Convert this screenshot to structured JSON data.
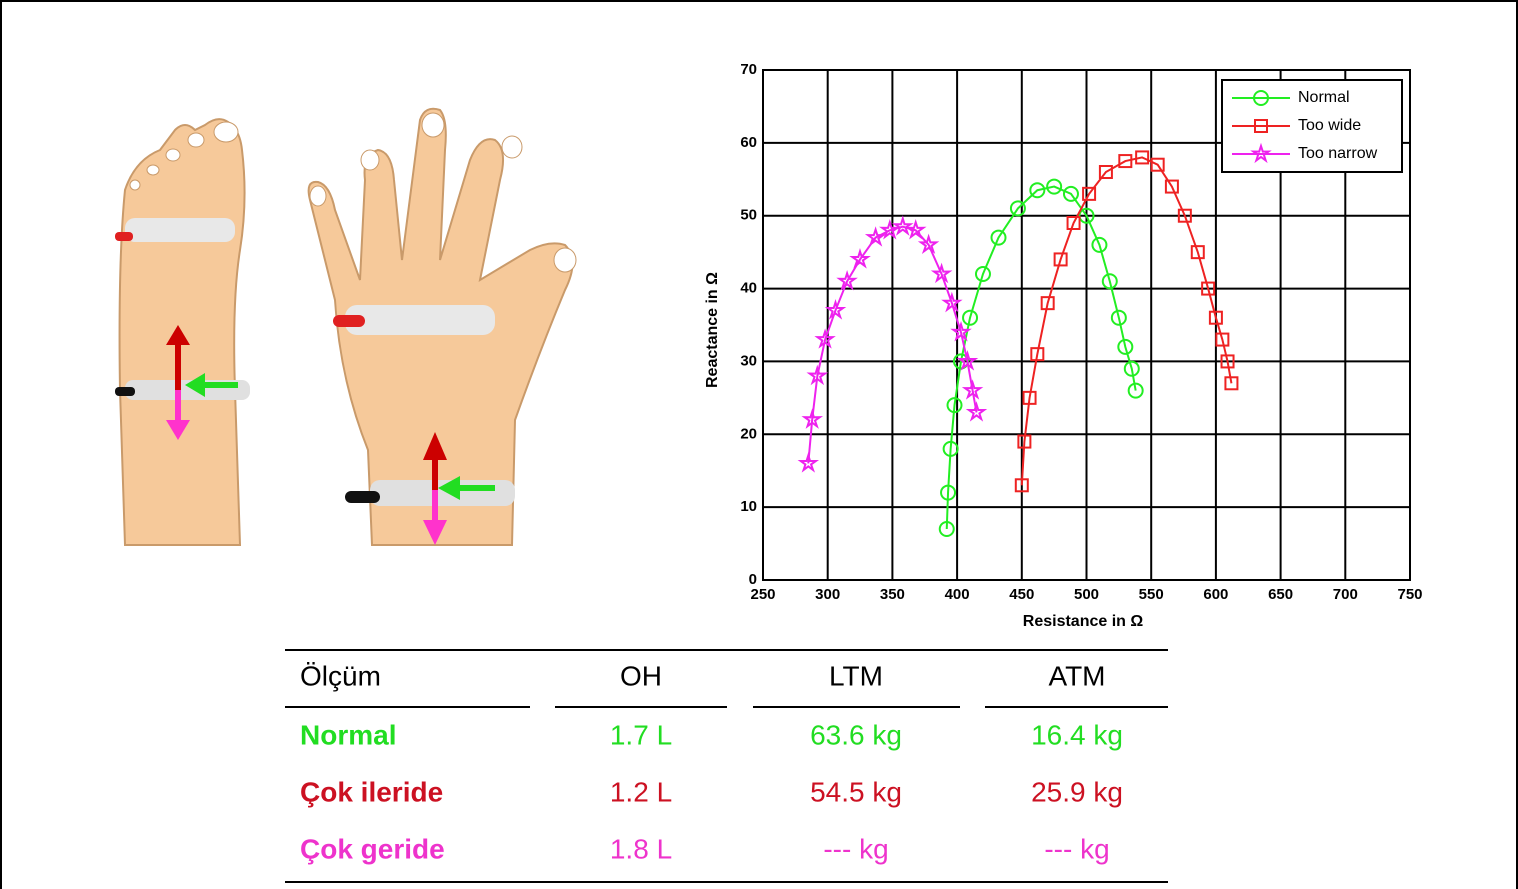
{
  "chart_data": {
    "type": "scatter",
    "x_label": "Resistance in Ω",
    "y_label": "Reactance in Ω",
    "xlim": [
      250,
      750
    ],
    "xticks": [
      250,
      300,
      350,
      400,
      450,
      500,
      550,
      600,
      650,
      700,
      750
    ],
    "ylim": [
      0,
      70
    ],
    "yticks": [
      0,
      10,
      20,
      30,
      40,
      50,
      60,
      70
    ],
    "grid": true,
    "legend": "northeast",
    "series": [
      {
        "name": "Normal",
        "color": "#22ee22",
        "marker": "circle",
        "x": [
          392,
          393,
          395,
          398,
          403,
          410,
          420,
          432,
          447,
          462,
          475,
          488,
          500,
          510,
          518,
          525,
          530,
          535,
          538
        ],
        "values": [
          7,
          12,
          18,
          24,
          30,
          36,
          42,
          47,
          51,
          53.5,
          54,
          53,
          50,
          46,
          41,
          36,
          32,
          29,
          26
        ]
      },
      {
        "name": "Too wide",
        "color": "#ee2222",
        "marker": "square",
        "x": [
          450,
          452,
          456,
          462,
          470,
          480,
          490,
          502,
          515,
          530,
          543,
          555,
          566,
          576,
          586,
          594,
          600,
          605,
          609,
          612
        ],
        "values": [
          13,
          19,
          25,
          31,
          38,
          44,
          49,
          53,
          56,
          57.5,
          58,
          57,
          54,
          50,
          45,
          40,
          36,
          33,
          30,
          27
        ]
      },
      {
        "name": "Too narrow",
        "color": "#ee22ee",
        "marker": "star",
        "x": [
          285,
          288,
          292,
          298,
          306,
          315,
          325,
          337,
          348,
          358,
          368,
          378,
          388,
          396,
          403,
          408,
          412,
          415
        ],
        "values": [
          16,
          22,
          28,
          33,
          37,
          41,
          44,
          47,
          48,
          48.5,
          48,
          46,
          42,
          38,
          34,
          30,
          26,
          23
        ]
      }
    ]
  },
  "table": {
    "header": [
      "Ölçüm",
      "OH",
      "LTM",
      "ATM"
    ],
    "rows": [
      [
        "Normal",
        "1.7 L",
        "63.6 kg",
        "16.4 kg"
      ],
      [
        "Çok ileride",
        "1.2 L",
        "54.5 kg",
        "25.9 kg"
      ],
      [
        "Çok geride",
        "1.8 L",
        "--- kg",
        "--- kg"
      ]
    ],
    "row_colors": [
      "#22dd22",
      "#cc1122",
      "#ee33cc"
    ]
  }
}
